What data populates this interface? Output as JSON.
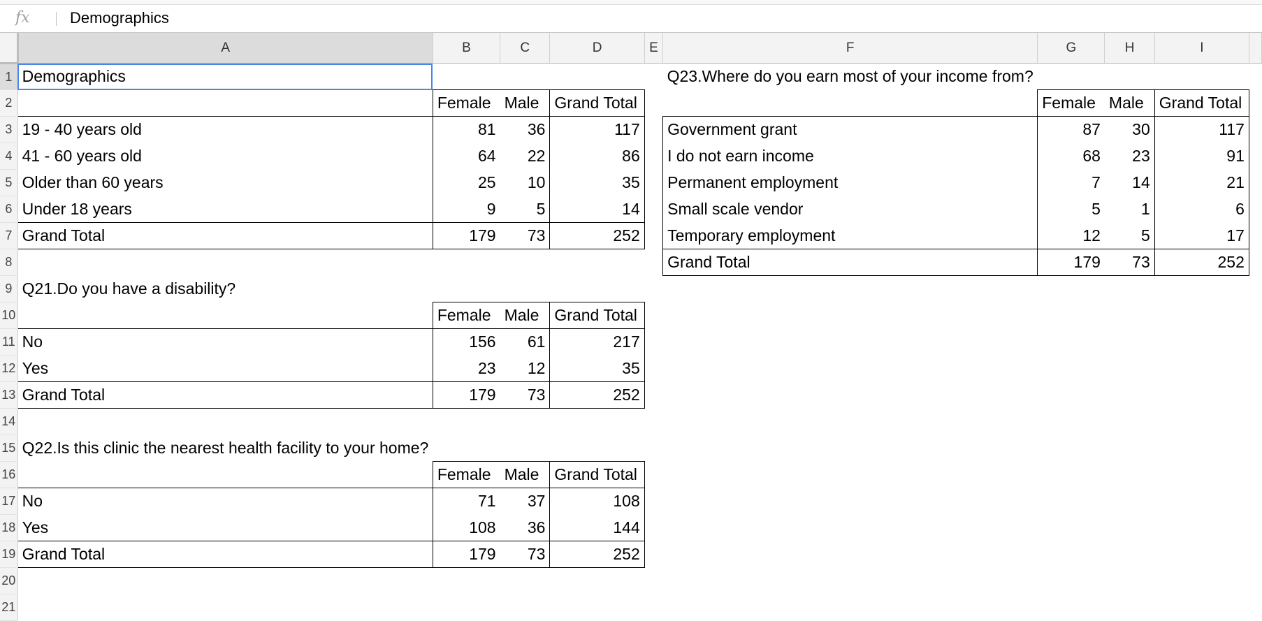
{
  "formula_bar": {
    "fx_symbol": "fx",
    "value": "Demographics"
  },
  "columns": [
    "A",
    "B",
    "C",
    "D",
    "E",
    "F",
    "G",
    "H",
    "I"
  ],
  "rows": [
    "1",
    "2",
    "3",
    "4",
    "5",
    "6",
    "7",
    "8",
    "9",
    "10",
    "11",
    "12",
    "13",
    "14",
    "15",
    "16",
    "17",
    "18",
    "19",
    "20",
    "21"
  ],
  "tables": {
    "demographics": {
      "title": "Demographics",
      "headers": [
        "Female",
        "Male",
        "Grand Total"
      ],
      "rows": [
        {
          "label": "19 - 40 years old",
          "values": [
            "81",
            "36",
            "117"
          ]
        },
        {
          "label": "41 - 60 years old",
          "values": [
            "64",
            "22",
            "86"
          ]
        },
        {
          "label": "Older than 60 years",
          "values": [
            "25",
            "10",
            "35"
          ]
        },
        {
          "label": "Under 18 years",
          "values": [
            "9",
            "5",
            "14"
          ]
        }
      ],
      "total": {
        "label": "Grand Total",
        "values": [
          "179",
          "73",
          "252"
        ]
      }
    },
    "q21": {
      "title": "Q21.Do you have a disability?",
      "headers": [
        "Female",
        "Male",
        "Grand Total"
      ],
      "rows": [
        {
          "label": "No",
          "values": [
            "156",
            "61",
            "217"
          ]
        },
        {
          "label": "Yes",
          "values": [
            "23",
            "12",
            "35"
          ]
        }
      ],
      "total": {
        "label": "Grand Total",
        "values": [
          "179",
          "73",
          "252"
        ]
      }
    },
    "q22": {
      "title": "Q22.Is this clinic the nearest health facility to your home?",
      "headers": [
        "Female",
        "Male",
        "Grand Total"
      ],
      "rows": [
        {
          "label": "No",
          "values": [
            "71",
            "37",
            "108"
          ]
        },
        {
          "label": "Yes",
          "values": [
            "108",
            "36",
            "144"
          ]
        }
      ],
      "total": {
        "label": "Grand Total",
        "values": [
          "179",
          "73",
          "252"
        ]
      }
    },
    "q23": {
      "title": "Q23.Where do you earn most of your income from?",
      "headers": [
        "Female",
        "Male",
        "Grand Total"
      ],
      "rows": [
        {
          "label": "Government grant",
          "values": [
            "87",
            "30",
            "117"
          ]
        },
        {
          "label": "I do not earn income",
          "values": [
            "68",
            "23",
            "91"
          ]
        },
        {
          "label": "Permanent employment",
          "values": [
            "7",
            "14",
            "21"
          ]
        },
        {
          "label": "Small scale vendor",
          "values": [
            "5",
            "1",
            "6"
          ]
        },
        {
          "label": "Temporary employment",
          "values": [
            "12",
            "5",
            "17"
          ]
        }
      ],
      "total": {
        "label": "Grand Total",
        "values": [
          "179",
          "73",
          "252"
        ]
      }
    }
  }
}
